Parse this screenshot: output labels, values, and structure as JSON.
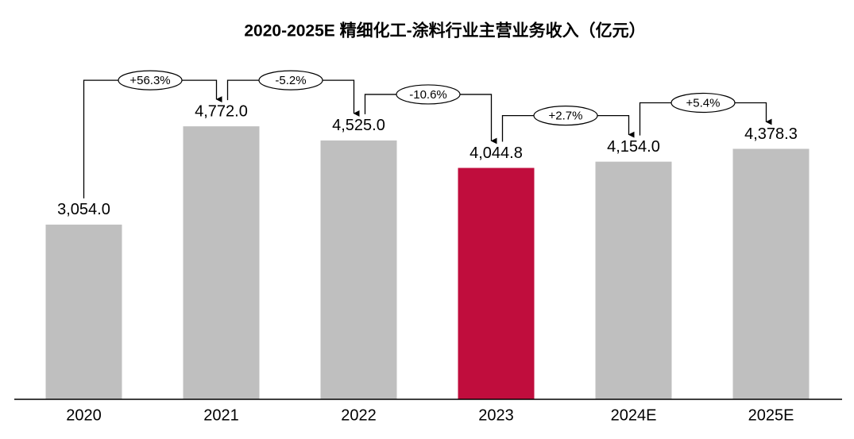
{
  "chart_data": {
    "type": "bar",
    "title": "2020-2025E 精细化工-涂料行业主营业务收入（亿元）",
    "categories": [
      "2020",
      "2021",
      "2022",
      "2023",
      "2024E",
      "2025E"
    ],
    "values": [
      3054.0,
      4772.0,
      4525.0,
      4044.8,
      4154.0,
      4378.3
    ],
    "value_labels": [
      "3,054.0",
      "4,772.0",
      "4,525.0",
      "4,044.8",
      "4,154.0",
      "4,378.3"
    ],
    "colors": [
      "#bfbfbf",
      "#bfbfbf",
      "#bfbfbf",
      "#c00d3d",
      "#bfbfbf",
      "#bfbfbf"
    ],
    "growth_labels": [
      "+56.3%",
      "-5.2%",
      "-10.6%",
      "+2.7%",
      "+5.4%"
    ],
    "ylim": [
      0,
      6980
    ]
  }
}
